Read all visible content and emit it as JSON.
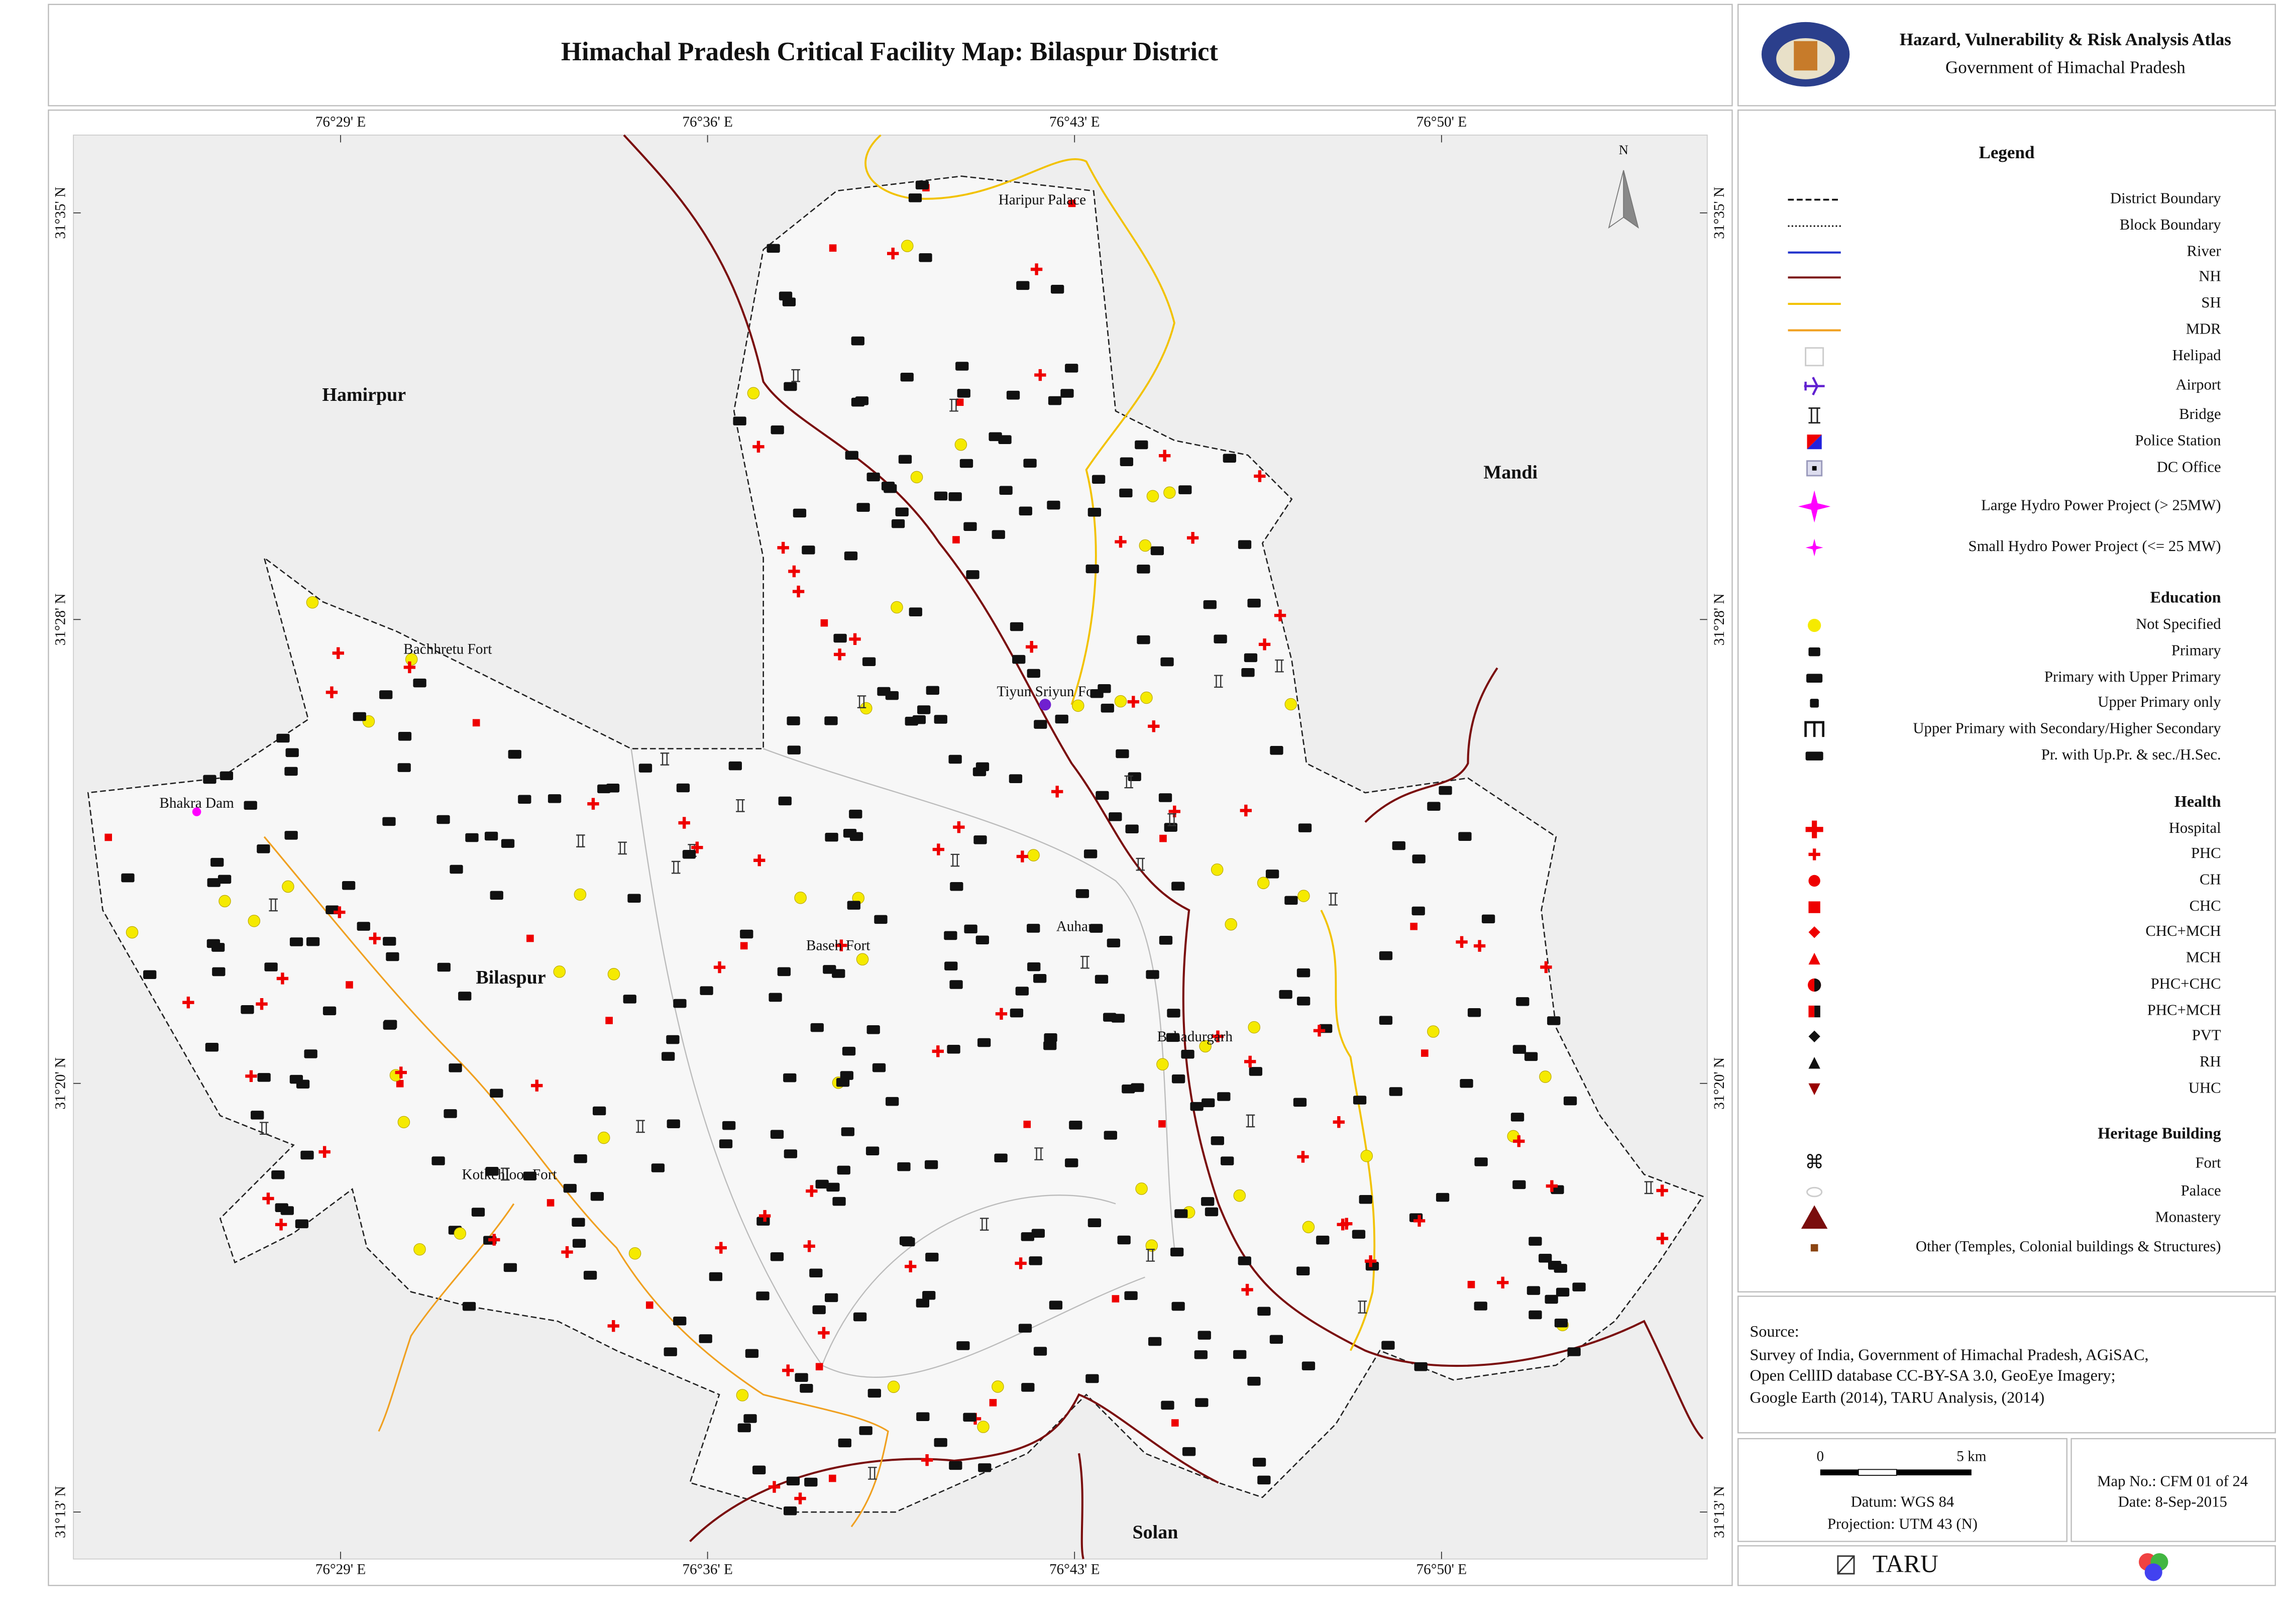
{
  "header": {
    "title": "Himachal Pradesh Critical Facility Map: Bilaspur District"
  },
  "atlas": {
    "title": "Hazard, Vulnerability & Risk Analysis Atlas",
    "subtitle": "Government of Himachal Pradesh"
  },
  "map": {
    "north": "N",
    "lon_labels": [
      "76°29' E",
      "76°36' E",
      "76°43' E",
      "76°50' E"
    ],
    "lat_labels": [
      "31°35' N",
      "31°28' N",
      "31°20' N",
      "31°13' N"
    ],
    "districts": [
      "Hamirpur",
      "Mandi",
      "Bilaspur",
      "Solan"
    ],
    "places": [
      "Haripur Palace",
      "Bachhretu Fort",
      "Bhakra Dam",
      "Tiyun Sriyun Fort",
      "Baseh Fort",
      "Auhar",
      "Bahadurgarh",
      "Kotkehloor Fort"
    ]
  },
  "legend": {
    "title": "Legend",
    "items": [
      "District Boundary",
      "Block Boundary",
      "River",
      "NH",
      "SH",
      "MDR",
      "Helipad",
      "Airport",
      "Bridge",
      "Police Station",
      "DC Office",
      "Large Hydro Power Project (> 25MW)",
      "Small Hydro Power Project (<= 25 MW)"
    ],
    "sections": [
      {
        "heading": "Education",
        "items": [
          "Not Specified",
          "Primary",
          "Primary with Upper Primary",
          "Upper Primary only",
          "Upper Primary with Secondary/Higher Secondary",
          "Pr. with Up.Pr. & sec./H.Sec."
        ]
      },
      {
        "heading": "Health",
        "items": [
          "Hospital",
          "PHC",
          "CH",
          "CHC",
          "CHC+MCH",
          "MCH",
          "PHC+CHC",
          "PHC+MCH",
          "PVT",
          "RH",
          "UHC"
        ]
      },
      {
        "heading": "Heritage Building",
        "items": [
          "Fort",
          "Palace",
          "Monastery",
          "Other (Temples, Colonial buildings & Structures)"
        ]
      }
    ]
  },
  "source": {
    "heading": "Source:",
    "lines": [
      "Survey of India, Government of Himachal Pradesh, AGiSAC,",
      "Open CellID database CC-BY-SA 3.0, GeoEye Imagery;",
      "Google Earth (2014), TARU Analysis, (2014)"
    ]
  },
  "scale": {
    "start": "0",
    "end": "5 km",
    "datum": "Datum: WGS 84",
    "projection": "Projection: UTM 43 (N)"
  },
  "map_info": {
    "number": "Map No.: CFM 01 of 24",
    "date": "Date: 8-Sep-2015"
  },
  "logo": {
    "text": "TARU"
  }
}
